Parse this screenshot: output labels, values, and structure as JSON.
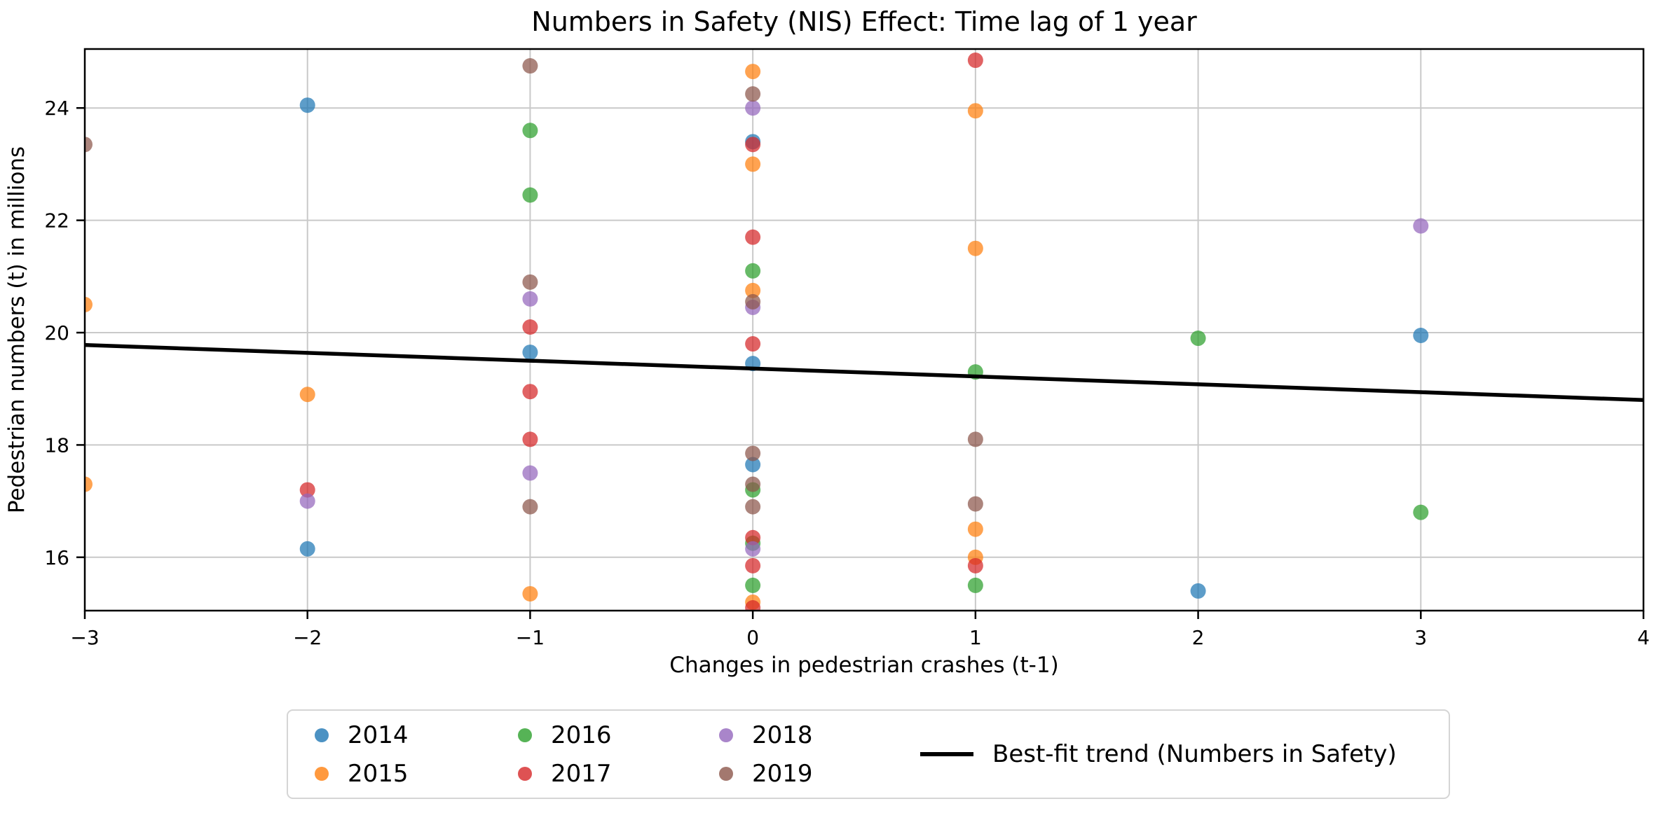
{
  "chart_data": {
    "type": "scatter",
    "title": "Numbers in Safety (NIS) Effect: Time lag of 1 year",
    "xlabel": "Changes in pedestrian crashes (t-1)",
    "ylabel": "Pedestrian numbers (t) in millions",
    "xlim": [
      -3,
      4
    ],
    "ylim": [
      15.05,
      25.05
    ],
    "xticks": [
      -3,
      -2,
      -1,
      0,
      1,
      2,
      3,
      4
    ],
    "yticks": [
      16,
      18,
      20,
      22,
      24
    ],
    "grid": true,
    "marker_alpha": 0.72,
    "legend_position": "bottom",
    "series": [
      {
        "name": "2014",
        "color": "#1f77b4",
        "points": [
          [
            -2,
            24.05
          ],
          [
            -2,
            16.15
          ],
          [
            -1,
            19.65
          ],
          [
            0,
            23.4
          ],
          [
            0,
            19.45
          ],
          [
            0,
            17.65
          ],
          [
            2,
            15.4
          ],
          [
            3,
            19.95
          ]
        ]
      },
      {
        "name": "2015",
        "color": "#ff7f0e",
        "points": [
          [
            -3,
            20.5
          ],
          [
            -3,
            17.3
          ],
          [
            -2,
            18.9
          ],
          [
            -1,
            15.35
          ],
          [
            0,
            24.65
          ],
          [
            0,
            23.0
          ],
          [
            0,
            20.75
          ],
          [
            0,
            15.2
          ],
          [
            1,
            23.95
          ],
          [
            1,
            21.5
          ],
          [
            1,
            16.5
          ],
          [
            1,
            16.0
          ]
        ]
      },
      {
        "name": "2016",
        "color": "#2ca02c",
        "points": [
          [
            -1,
            23.6
          ],
          [
            -1,
            22.45
          ],
          [
            0,
            21.1
          ],
          [
            0,
            17.2
          ],
          [
            0,
            16.25
          ],
          [
            0,
            15.5
          ],
          [
            1,
            19.3
          ],
          [
            1,
            15.5
          ],
          [
            2,
            19.9
          ],
          [
            3,
            16.8
          ]
        ]
      },
      {
        "name": "2017",
        "color": "#d62728",
        "points": [
          [
            -2,
            17.2
          ],
          [
            -1,
            20.1
          ],
          [
            -1,
            18.95
          ],
          [
            -1,
            18.1
          ],
          [
            0,
            23.35
          ],
          [
            0,
            21.7
          ],
          [
            0,
            19.8
          ],
          [
            0,
            16.35
          ],
          [
            0,
            15.85
          ],
          [
            0,
            15.1
          ],
          [
            1,
            24.85
          ],
          [
            1,
            15.85
          ]
        ]
      },
      {
        "name": "2018",
        "color": "#9467bd",
        "points": [
          [
            -2,
            17.0
          ],
          [
            -1,
            20.6
          ],
          [
            -1,
            17.5
          ],
          [
            0,
            24.0
          ],
          [
            0,
            20.45
          ],
          [
            0,
            16.15
          ],
          [
            3,
            21.9
          ]
        ]
      },
      {
        "name": "2019",
        "color": "#8c564b",
        "points": [
          [
            -3,
            23.35
          ],
          [
            -1,
            24.75
          ],
          [
            -1,
            20.9
          ],
          [
            -1,
            16.9
          ],
          [
            0,
            24.25
          ],
          [
            0,
            20.55
          ],
          [
            0,
            17.85
          ],
          [
            0,
            17.3
          ],
          [
            0,
            16.9
          ],
          [
            1,
            18.1
          ],
          [
            1,
            16.95
          ]
        ]
      }
    ],
    "trend": {
      "label": "Best-fit trend (Numbers in Safety)",
      "color": "#000000",
      "points": [
        [
          -3,
          19.78
        ],
        [
          4,
          18.8
        ]
      ]
    }
  },
  "colors": {
    "grid": "#c9c9c9",
    "spine": "#000000",
    "background": "#ffffff",
    "legend_border": "#d5d5d5"
  }
}
